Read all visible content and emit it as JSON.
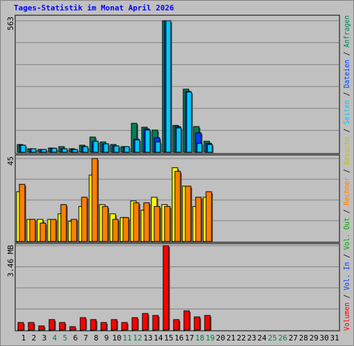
{
  "title": "Tages-Statistik im Monat April 2026",
  "legend_separator": "/",
  "extra_legend": [
    {
      "name": "Vol. In",
      "color": "#0040ff"
    },
    {
      "name": "Vol. Out",
      "color": "#00a000"
    }
  ],
  "categories": [
    "1",
    "2",
    "3",
    "4",
    "5",
    "6",
    "7",
    "8",
    "9",
    "10",
    "11",
    "12",
    "13",
    "14",
    "15",
    "16",
    "17",
    "18",
    "19",
    "20",
    "21",
    "22",
    "23",
    "24",
    "25",
    "26",
    "27",
    "28",
    "29",
    "30",
    "31"
  ],
  "category_colors": [
    "#000",
    "#000",
    "#000",
    "#008040",
    "#008040",
    "#000",
    "#000",
    "#000",
    "#000",
    "#000",
    "#008040",
    "#008040",
    "#000",
    "#000",
    "#000",
    "#000",
    "#000",
    "#008040",
    "#008040",
    "#000",
    "#000",
    "#000",
    "#000",
    "#000",
    "#008040",
    "#008040",
    "#000",
    "#000",
    "#000",
    "#000",
    "#000"
  ],
  "chart_data": [
    {
      "type": "bar",
      "ylim": [
        0,
        563
      ],
      "yticks": [
        563
      ],
      "series": [
        {
          "name": "Anfragen",
          "color": "#00805c",
          "values": [
            33,
            15,
            12,
            18,
            24,
            15,
            30,
            65,
            44,
            33,
            24,
            124,
            107,
            95,
            563,
            115,
            270,
            110,
            47,
            0,
            0,
            0,
            0,
            0,
            0,
            0,
            0,
            0,
            0,
            0,
            0
          ]
        },
        {
          "name": "Dateien",
          "color": "#0040ff",
          "values": [
            30,
            15,
            12,
            17,
            15,
            12,
            24,
            47,
            36,
            27,
            24,
            56,
            100,
            62,
            563,
            110,
            260,
            83,
            38,
            0,
            0,
            0,
            0,
            0,
            0,
            0,
            0,
            0,
            0,
            0,
            0
          ]
        },
        {
          "name": "Seiten",
          "color": "#00c8ff",
          "values": [
            30,
            15,
            12,
            17,
            15,
            12,
            24,
            47,
            36,
            27,
            24,
            53,
            95,
            44,
            563,
            104,
            258,
            38,
            33,
            0,
            0,
            0,
            0,
            0,
            0,
            0,
            0,
            0,
            0,
            0,
            0
          ]
        }
      ]
    },
    {
      "type": "bar",
      "ylim": [
        0,
        45
      ],
      "yticks": [
        45
      ],
      "series": [
        {
          "name": "Besuche",
          "color": "#ffff00",
          "values": [
            27,
            12,
            12,
            12,
            15,
            11,
            19,
            36,
            20,
            15,
            13,
            22,
            17,
            24,
            20,
            40,
            30,
            19,
            24,
            0,
            0,
            0,
            0,
            0,
            0,
            0,
            0,
            0,
            0,
            0,
            0
          ]
        },
        {
          "name": "Rechner",
          "color": "#ff8000",
          "values": [
            31,
            12,
            10,
            12,
            20,
            12,
            24,
            45,
            19,
            12,
            13,
            21,
            21,
            19,
            19,
            38,
            30,
            24,
            27,
            0,
            0,
            0,
            0,
            0,
            0,
            0,
            0,
            0,
            0,
            0,
            0
          ]
        }
      ]
    },
    {
      "type": "bar",
      "ylim": [
        0,
        3.46
      ],
      "yticks": [
        {
          "value": 3.46,
          "label": "3.46 MB"
        }
      ],
      "series": [
        {
          "name": "Volumen",
          "color": "#ff0000",
          "values": [
            0.31,
            0.31,
            0.17,
            0.43,
            0.31,
            0.14,
            0.51,
            0.43,
            0.31,
            0.43,
            0.31,
            0.51,
            0.68,
            0.6,
            3.46,
            0.43,
            0.79,
            0.54,
            0.6,
            0,
            0,
            0,
            0,
            0,
            0,
            0,
            0,
            0,
            0,
            0,
            0
          ]
        }
      ]
    }
  ]
}
